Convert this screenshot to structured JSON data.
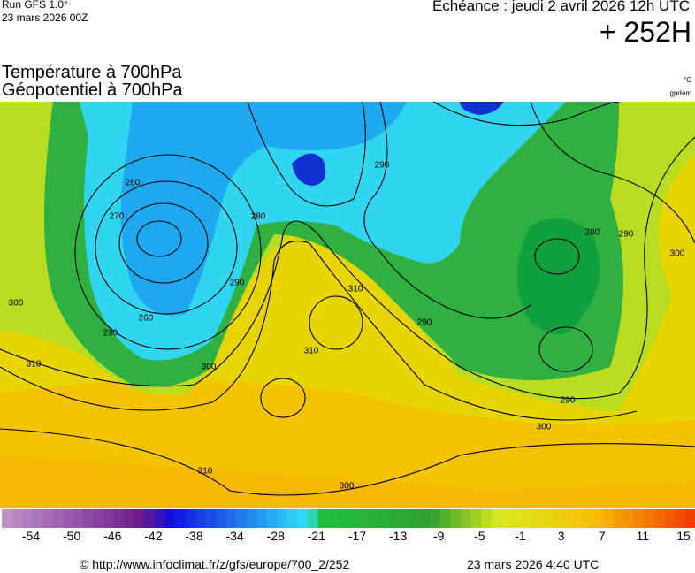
{
  "header": {
    "run": "Run GFS 1.0°",
    "run_date": "23 mars 2026 00Z",
    "echeance": "Echéance : jeudi 2 avril 2026 12h UTC",
    "lead": "+ 252H",
    "title_temp": "Température à 700hPa",
    "title_geo": "Géopotentiel à 700hPa",
    "unit_temp": "°C",
    "unit_geo": "gpdam"
  },
  "colorbar": {
    "labels": [
      "-54",
      "-50",
      "-46",
      "-42",
      "-38",
      "-34",
      "-28",
      "-21",
      "-17",
      "-13",
      "-9",
      "-5",
      "-1",
      "3",
      "7",
      "11",
      "15"
    ]
  },
  "contours": [
    "280",
    "270",
    "260",
    "290",
    "300",
    "310",
    "290",
    "300",
    "280",
    "290",
    "290",
    "310",
    "300",
    "300",
    "310",
    "310",
    "290",
    "280",
    "290",
    "300"
  ],
  "footer": {
    "url": "© http://www.infoclimat.fr/z/gfs/europe/700_2/252",
    "date": "23 mars 2026  4:40 UTC"
  }
}
